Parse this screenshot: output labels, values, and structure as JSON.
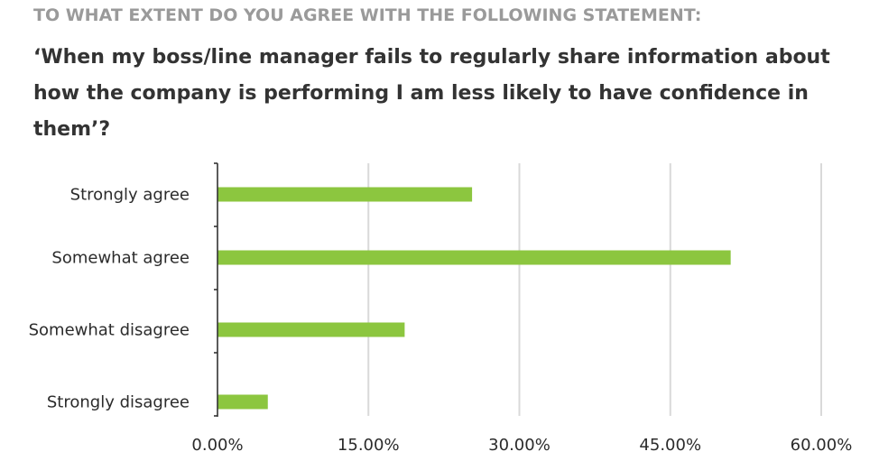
{
  "header": {
    "subtitle": "TO WHAT EXTENT DO YOU AGREE WITH THE FOLLOWING STATEMENT:",
    "question": "‘When my boss/line manager fails to regularly share information about how the company is performing I am less likely to have confidence in them’?"
  },
  "chart_data": {
    "type": "bar",
    "orientation": "horizontal",
    "categories": [
      "Strongly agree",
      "Somewhat agree",
      "Somewhat disagree",
      "Strongly disagree"
    ],
    "values": [
      25.3,
      51.0,
      18.6,
      5.0
    ],
    "xlim": [
      0,
      60
    ],
    "xticks": [
      0,
      15,
      30,
      45,
      60
    ],
    "xtick_labels": [
      "0.00%",
      "15.00%",
      "30.00%",
      "45.00%",
      "60.00%"
    ],
    "grid": "vertical",
    "bar_color": "#8cc63f",
    "grid_color": "#d9d9d9",
    "axis_color": "#333333"
  }
}
